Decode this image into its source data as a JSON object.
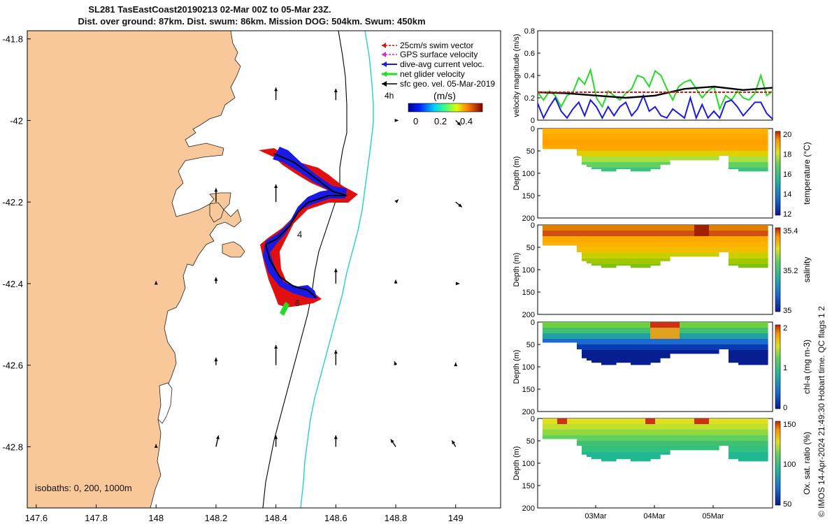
{
  "figure": {
    "title_line1": "SL281 TasEastCoast20190213 02-Mar 00Z to 05-Mar 23Z.",
    "title_line2": "Dist. over ground: 87km. Dist. swum: 86km. Mission DOG: 504km. Swum: 450km",
    "copyright": "© IMOS 14-Apr-2024 21:49:30 Hobart time. QC flags 1  2"
  },
  "colors": {
    "land": "#f8c89a",
    "land_edge": "#222222",
    "swim": "#e01010",
    "gps": "#e020e0",
    "current": "#1a1ae6",
    "net": "#22dd22",
    "geo": "#000000",
    "isobath_200": "#000000",
    "isobath_1000": "#22d0d0"
  },
  "chart_data": [
    {
      "type": "scatter",
      "name": "map",
      "xlim": [
        147.57,
        149.15
      ],
      "ylim": [
        -42.95,
        -41.78
      ],
      "xticks": [
        147.6,
        147.8,
        148,
        148.2,
        148.4,
        148.6,
        148.8,
        149
      ],
      "yticks": [
        -41.8,
        -42,
        -42.2,
        -42.4,
        -42.6,
        -42.8
      ],
      "isobath_label": "isobaths: 0, 200, 1000m",
      "legend": {
        "entries": [
          "25cm/s swim vector",
          "GPS surface velocity",
          "dive-avg current veloc.",
          "net glider velocity",
          "sfc geo. vel. 05-Mar-2019"
        ],
        "time_label": "4h",
        "colorbar_label": "(m/s)",
        "colorbar_ticks": [
          "0",
          "0.2",
          "0.4"
        ]
      },
      "track_labels": [
        "4",
        "6"
      ],
      "glider_track": {
        "lon": [
          148.38,
          148.43,
          148.5,
          148.6,
          148.62,
          148.5,
          148.4,
          148.35,
          148.39,
          148.46,
          148.52,
          148.45,
          148.43
        ],
        "lat": [
          -42.11,
          -42.14,
          -42.17,
          -42.2,
          -42.2,
          -42.21,
          -42.28,
          -42.32,
          -42.4,
          -42.45,
          -42.44,
          -42.44,
          -42.47
        ]
      },
      "geo_vectors": [
        {
          "lon": 148.4,
          "lat": -41.95,
          "u": 0,
          "v": 0.1
        },
        {
          "lon": 148.6,
          "lat": -41.95,
          "u": 0,
          "v": 0.09
        },
        {
          "lon": 148.8,
          "lat": -42.0,
          "u": 0.02,
          "v": 0
        },
        {
          "lon": 149.0,
          "lat": -42.0,
          "u": 0.04,
          "v": -0.04
        },
        {
          "lon": 148.2,
          "lat": -42.2,
          "u": 0,
          "v": 0.11
        },
        {
          "lon": 148.4,
          "lat": -42.2,
          "u": 0,
          "v": 0.14
        },
        {
          "lon": 148.8,
          "lat": -42.2,
          "u": 0.02,
          "v": 0.02
        },
        {
          "lon": 149.0,
          "lat": -42.2,
          "u": 0.05,
          "v": -0.04
        },
        {
          "lon": 148.0,
          "lat": -42.4,
          "u": 0,
          "v": 0.02
        },
        {
          "lon": 148.2,
          "lat": -42.4,
          "u": 0,
          "v": 0.05
        },
        {
          "lon": 148.6,
          "lat": -42.4,
          "u": 0,
          "v": 0.12
        },
        {
          "lon": 148.8,
          "lat": -42.4,
          "u": 0,
          "v": 0.03
        },
        {
          "lon": 149.0,
          "lat": -42.4,
          "u": 0.03,
          "v": 0
        },
        {
          "lon": 148.2,
          "lat": -42.6,
          "u": 0,
          "v": 0.06
        },
        {
          "lon": 148.4,
          "lat": -42.6,
          "u": 0,
          "v": 0.16
        },
        {
          "lon": 148.6,
          "lat": -42.6,
          "u": 0,
          "v": 0.12
        },
        {
          "lon": 148.8,
          "lat": -42.6,
          "u": -0.01,
          "v": 0.03
        },
        {
          "lon": 149.0,
          "lat": -42.6,
          "u": 0,
          "v": 0.02
        },
        {
          "lon": 148.0,
          "lat": -42.8,
          "u": 0,
          "v": 0.02
        },
        {
          "lon": 148.2,
          "lat": -42.8,
          "u": 0.02,
          "v": 0.09
        },
        {
          "lon": 148.4,
          "lat": -42.8,
          "u": 0,
          "v": 0.09
        },
        {
          "lon": 148.6,
          "lat": -42.8,
          "u": 0,
          "v": 0.09
        },
        {
          "lon": 148.8,
          "lat": -42.8,
          "u": -0.04,
          "v": 0.06
        },
        {
          "lon": 149.0,
          "lat": -42.8,
          "u": -0.03,
          "v": 0.05
        }
      ]
    },
    {
      "type": "line",
      "name": "velocity",
      "ylabel": "velocity magnitude (m/s)",
      "ylim": [
        0,
        0.8
      ],
      "yticks": [
        0,
        0.2,
        0.4,
        0.6,
        0.8
      ],
      "xlim": [
        0,
        4
      ],
      "series": [
        {
          "color": "#22dd22",
          "x": [
            0,
            0.1,
            0.2,
            0.3,
            0.4,
            0.5,
            0.6,
            0.7,
            0.8,
            0.9,
            1.0,
            1.1,
            1.2,
            1.3,
            1.4,
            1.5,
            1.6,
            1.7,
            1.8,
            1.9,
            2.0,
            2.1,
            2.2,
            2.3,
            2.4,
            2.5,
            2.6,
            2.7,
            2.8,
            2.9,
            3.0,
            3.1,
            3.2,
            3.3,
            3.4,
            3.5,
            3.6,
            3.7,
            3.8,
            3.9,
            4.0
          ],
          "y": [
            0.25,
            0.18,
            0.26,
            0.22,
            0.12,
            0.22,
            0.25,
            0.38,
            0.32,
            0.45,
            0.2,
            0.12,
            0.26,
            0.22,
            0.18,
            0.24,
            0.28,
            0.4,
            0.38,
            0.3,
            0.44,
            0.4,
            0.28,
            0.18,
            0.3,
            0.34,
            0.36,
            0.28,
            0.2,
            0.26,
            0.3,
            0.1,
            0.22,
            0.18,
            0.26,
            0.2,
            0.18,
            0.24,
            0.4,
            0.22,
            0.26
          ]
        },
        {
          "color": "#1a1ae6",
          "x": [
            0,
            0.1,
            0.2,
            0.3,
            0.4,
            0.5,
            0.6,
            0.7,
            0.8,
            0.9,
            1.0,
            1.1,
            1.2,
            1.3,
            1.4,
            1.5,
            1.6,
            1.7,
            1.8,
            1.9,
            2.0,
            2.1,
            2.2,
            2.3,
            2.4,
            2.5,
            2.6,
            2.7,
            2.8,
            2.9,
            3.0,
            3.1,
            3.2,
            3.3,
            3.4,
            3.5,
            3.6,
            3.7,
            3.8,
            3.9,
            4.0
          ],
          "y": [
            0.15,
            0.02,
            0.12,
            0.2,
            0.08,
            0.02,
            0.1,
            0.16,
            0.04,
            0.18,
            0.12,
            0.02,
            0.12,
            0.04,
            0.12,
            0.16,
            0.04,
            0.1,
            0.22,
            0.08,
            0.12,
            0.04,
            0.02,
            0.1,
            0.06,
            0.02,
            0.2,
            0.02,
            0.14,
            0.02,
            0.08,
            0.02,
            0.16,
            0.18,
            0.12,
            0.04,
            0.1,
            0.16,
            0.16,
            0.06,
            0.01
          ]
        },
        {
          "color": "#000000",
          "x": [
            0,
            0.5,
            1.0,
            1.5,
            2.0,
            2.5,
            3.0,
            3.5,
            4.0
          ],
          "y": [
            0.25,
            0.24,
            0.22,
            0.2,
            0.22,
            0.28,
            0.3,
            0.27,
            0.29
          ]
        },
        {
          "color": "#e01010",
          "dashed": true,
          "x": [
            0,
            4
          ],
          "y": [
            0.25,
            0.25
          ]
        }
      ]
    },
    {
      "type": "heatmap",
      "name": "temperature",
      "ylabel": "Depth (m)",
      "colorbar_label": "temperature (°C)",
      "colorbar_ticks": [
        "12",
        "14",
        "16",
        "18",
        "20"
      ],
      "ylim": [
        200,
        0
      ],
      "yticks": [
        0,
        50,
        100,
        150,
        200
      ],
      "max_depth": [
        45,
        45,
        45,
        45,
        45,
        45,
        45,
        60,
        80,
        85,
        90,
        90,
        95,
        95,
        95,
        90,
        90,
        90,
        95,
        95,
        95,
        95,
        90,
        90,
        80,
        80,
        70,
        70,
        70,
        70,
        70,
        70,
        70,
        70,
        70,
        70,
        60,
        60,
        90,
        90,
        95,
        95,
        95,
        95,
        95,
        95
      ],
      "colors": [
        "#ffb000",
        "#ffa800",
        "#ff9f00",
        "#ffa800",
        "#e0d000",
        "#a8e040",
        "#60d060",
        "#40c080"
      ]
    },
    {
      "type": "heatmap",
      "name": "salinity",
      "ylabel": "Depth (m)",
      "colorbar_label": "salinity",
      "colorbar_ticks": [
        "35",
        "35.2",
        "35.4"
      ],
      "ylim": [
        200,
        0
      ],
      "yticks": [
        0,
        50,
        100,
        150,
        200
      ],
      "max_depth": [
        45,
        45,
        45,
        45,
        45,
        45,
        45,
        60,
        80,
        85,
        90,
        90,
        95,
        95,
        95,
        90,
        90,
        90,
        95,
        95,
        95,
        95,
        90,
        90,
        80,
        80,
        70,
        70,
        70,
        70,
        70,
        70,
        70,
        70,
        70,
        70,
        60,
        60,
        90,
        90,
        95,
        95,
        95,
        95,
        95,
        95
      ],
      "colors": [
        "#e08000",
        "#d05010",
        "#ffa800",
        "#ffb000",
        "#f0c000",
        "#c8d000",
        "#a0c800",
        "#80c010"
      ]
    },
    {
      "type": "heatmap",
      "name": "chl-a",
      "ylabel": "Depth (m)",
      "colorbar_label": "chl-a (mg m-3)",
      "colorbar_ticks": [
        "0",
        "1",
        "2"
      ],
      "ylim": [
        200,
        0
      ],
      "yticks": [
        0,
        50,
        100,
        150,
        200
      ],
      "max_depth": [
        45,
        45,
        45,
        45,
        45,
        45,
        45,
        60,
        80,
        85,
        90,
        90,
        95,
        95,
        95,
        90,
        90,
        90,
        95,
        95,
        95,
        95,
        90,
        90,
        80,
        80,
        70,
        70,
        70,
        70,
        70,
        70,
        70,
        70,
        70,
        70,
        60,
        60,
        90,
        90,
        95,
        95,
        95,
        95,
        95,
        95
      ],
      "colors": [
        "#70d040",
        "#40c070",
        "#20a0a0",
        "#1a6ad0",
        "#0a3ab0",
        "#061e90",
        "#061e90",
        "#061e90"
      ]
    },
    {
      "type": "heatmap",
      "name": "oxygen",
      "ylabel": "Depth (m)",
      "colorbar_label": "Ox. sat. ratio (%)",
      "colorbar_ticks": [
        "50",
        "100",
        "150"
      ],
      "ylim": [
        200,
        0
      ],
      "yticks": [
        0,
        50,
        100,
        150,
        200
      ],
      "max_depth": [
        45,
        45,
        45,
        45,
        45,
        45,
        45,
        60,
        80,
        85,
        90,
        90,
        95,
        95,
        95,
        90,
        90,
        90,
        95,
        95,
        95,
        95,
        90,
        90,
        80,
        80,
        70,
        70,
        70,
        70,
        70,
        70,
        70,
        70,
        70,
        70,
        60,
        60,
        90,
        90,
        95,
        95,
        95,
        95,
        95,
        95
      ],
      "colors": [
        "#e0e020",
        "#c0e030",
        "#90d840",
        "#60d060",
        "#40c070",
        "#30c080",
        "#20b890",
        "#20b890"
      ]
    },
    {
      "type": "line",
      "name": "time-axis",
      "xtick_labels": [
        "03Mar",
        "04Mar",
        "05Mar"
      ]
    }
  ]
}
